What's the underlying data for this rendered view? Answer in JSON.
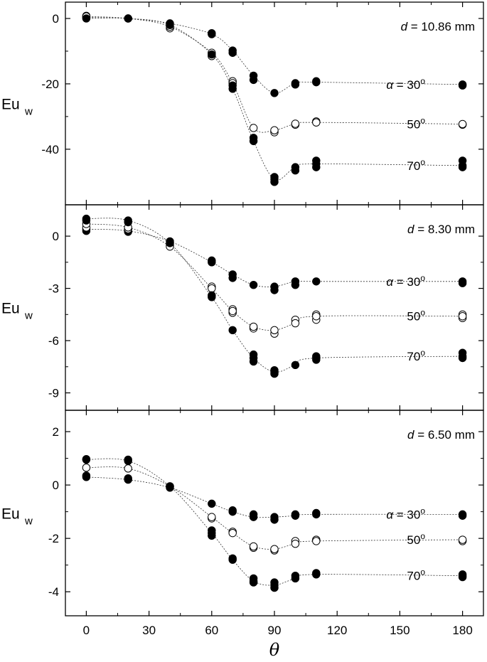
{
  "chart_data": [
    {
      "type": "scatter",
      "panel_label": "d = 10.86 mm",
      "ylabel": "Eu",
      "ylabel_sub": "w",
      "ylim": [
        -57,
        5
      ],
      "yticks": [
        0,
        -20,
        -40
      ],
      "ytick_labels": [
        "0",
        "-20",
        "-40"
      ],
      "xlim": [
        -10,
        190
      ],
      "xticks": [
        0,
        30,
        60,
        90,
        120,
        150,
        180
      ],
      "series": [
        {
          "label": "α = 30°",
          "fill": "filled",
          "x": [
            0,
            20,
            40,
            60,
            70,
            80,
            90,
            100,
            110,
            180
          ],
          "y": [
            0.3,
            0,
            -1.5,
            -4.8,
            -9.8,
            -17.5,
            -22.8,
            -19.8,
            -19.5,
            -20.2
          ],
          "extra": [
            [
              0,
              0.8
            ],
            [
              60,
              -4.5
            ],
            [
              70,
              -10.5
            ],
            [
              80,
              -18.8
            ],
            [
              100,
              -20.2
            ],
            [
              110,
              -19.2
            ],
            [
              180,
              -20.5
            ]
          ]
        },
        {
          "label": "50°",
          "fill": "open",
          "x": [
            0,
            20,
            40,
            60,
            70,
            80,
            90,
            100,
            110,
            180
          ],
          "y": [
            0.6,
            0,
            -2.5,
            -10.5,
            -19.8,
            -33.5,
            -34.2,
            -32.2,
            -31.8,
            -32.3
          ],
          "extra": [
            [
              40,
              -3
            ],
            [
              60,
              -11.5
            ],
            [
              70,
              -19.2
            ],
            [
              90,
              -34.8
            ],
            [
              100,
              -32.5
            ],
            [
              110,
              -31.5
            ],
            [
              180,
              -32.5
            ]
          ]
        },
        {
          "label": "70°",
          "fill": "filled",
          "x": [
            0,
            20,
            40,
            60,
            70,
            80,
            90,
            100,
            110,
            180
          ],
          "y": [
            0,
            0,
            -2,
            -11,
            -21.5,
            -37.5,
            -49.2,
            -45.5,
            -44.5,
            -45
          ],
          "extra": [
            [
              70,
              -20.5
            ],
            [
              80,
              -36.5
            ],
            [
              90,
              -48.5
            ],
            [
              90,
              -50
            ],
            [
              100,
              -46.5
            ],
            [
              110,
              -43.5
            ],
            [
              110,
              -45.5
            ],
            [
              180,
              -43.5
            ],
            [
              180,
              -45.5
            ]
          ]
        }
      ]
    },
    {
      "type": "scatter",
      "panel_label": "d = 8.30 mm",
      "ylabel": "Eu",
      "ylabel_sub": "w",
      "ylim": [
        -10,
        1.8
      ],
      "yticks": [
        0,
        -3,
        -6,
        -9
      ],
      "ytick_labels": [
        "0",
        "-3",
        "-6",
        "-9"
      ],
      "xlim": [
        -10,
        190
      ],
      "xticks": [
        0,
        30,
        60,
        90,
        120,
        150,
        180
      ],
      "series": [
        {
          "label": "α = 30°",
          "fill": "filled",
          "x": [
            0,
            20,
            40,
            60,
            70,
            80,
            90,
            100,
            110,
            180
          ],
          "y": [
            0.4,
            0.3,
            -0.3,
            -1.5,
            -2.2,
            -2.8,
            -2.9,
            -2.6,
            -2.6,
            -2.6
          ],
          "extra": [
            [
              0,
              0.3
            ],
            [
              20,
              0.25
            ],
            [
              40,
              -0.5
            ],
            [
              60,
              -1.4
            ],
            [
              70,
              -2.4
            ],
            [
              90,
              -3.1
            ],
            [
              100,
              -2.8
            ],
            [
              180,
              -2.7
            ]
          ]
        },
        {
          "label": "50°",
          "fill": "open",
          "x": [
            0,
            20,
            40,
            60,
            70,
            80,
            90,
            100,
            110,
            180
          ],
          "y": [
            0.7,
            0.5,
            -0.6,
            -3.0,
            -4.3,
            -5.2,
            -5.4,
            -5.0,
            -4.6,
            -4.6
          ],
          "extra": [
            [
              0,
              0.5
            ],
            [
              20,
              0.4
            ],
            [
              60,
              -2.9
            ],
            [
              70,
              -4.2
            ],
            [
              70,
              -4.4
            ],
            [
              80,
              -5.3
            ],
            [
              90,
              -5.6
            ],
            [
              100,
              -4.8
            ],
            [
              110,
              -4.5
            ],
            [
              110,
              -4.8
            ],
            [
              180,
              -4.5
            ],
            [
              180,
              -4.7
            ]
          ]
        },
        {
          "label": "70°",
          "fill": "filled",
          "x": [
            0,
            20,
            40,
            60,
            70,
            80,
            90,
            100,
            110,
            180
          ],
          "y": [
            1.0,
            0.9,
            -0.4,
            -3.5,
            -5.4,
            -7.0,
            -7.8,
            -7.4,
            -7.0,
            -6.9
          ],
          "extra": [
            [
              0,
              0.9
            ],
            [
              20,
              0.8
            ],
            [
              60,
              -3.4
            ],
            [
              80,
              -6.8
            ],
            [
              80,
              -7.2
            ],
            [
              90,
              -7.7
            ],
            [
              90,
              -7.9
            ],
            [
              110,
              -6.9
            ],
            [
              110,
              -7.1
            ],
            [
              180,
              -6.7
            ],
            [
              180,
              -7.0
            ]
          ]
        }
      ]
    },
    {
      "type": "scatter",
      "panel_label": "d = 6.50 mm",
      "ylabel": "Eu",
      "ylabel_sub": "w",
      "ylim": [
        -4.9,
        2.8
      ],
      "yticks": [
        2,
        0,
        -2,
        -4
      ],
      "ytick_labels": [
        "2",
        "0",
        "-2",
        "-4"
      ],
      "xlim": [
        -10,
        190
      ],
      "xticks": [
        0,
        30,
        60,
        90,
        120,
        150,
        180
      ],
      "xtick_labels": [
        "0",
        "30",
        "60",
        "90",
        "120",
        "150",
        "180"
      ],
      "xlabel": "θ",
      "series": [
        {
          "label": "α = 30°",
          "fill": "filled",
          "x": [
            0,
            20,
            40,
            60,
            70,
            80,
            90,
            100,
            110,
            180
          ],
          "y": [
            0.3,
            0.2,
            -0.1,
            -0.7,
            -1.0,
            -1.2,
            -1.2,
            -1.15,
            -1.1,
            -1.1
          ],
          "extra": [
            [
              0,
              0.35
            ],
            [
              20,
              0.25
            ],
            [
              70,
              -0.95
            ],
            [
              80,
              -1.1
            ],
            [
              90,
              -1.3
            ],
            [
              100,
              -1.1
            ],
            [
              110,
              -1.05
            ],
            [
              180,
              -1.15
            ]
          ]
        },
        {
          "label": "50°",
          "fill": "open",
          "x": [
            0,
            20,
            40,
            60,
            70,
            80,
            90,
            100,
            110,
            180
          ],
          "y": [
            0.65,
            0.62,
            -0.05,
            -1.2,
            -1.8,
            -2.3,
            -2.4,
            -2.2,
            -2.1,
            -2.05
          ],
          "extra": [
            [
              60,
              -1.25
            ],
            [
              70,
              -1.75
            ],
            [
              80,
              -2.35
            ],
            [
              90,
              -2.45
            ],
            [
              100,
              -2.1
            ],
            [
              110,
              -2.05
            ],
            [
              180,
              -2.1
            ]
          ]
        },
        {
          "label": "70°",
          "fill": "filled",
          "x": [
            0,
            20,
            40,
            60,
            70,
            80,
            90,
            100,
            110,
            180
          ],
          "y": [
            0.95,
            0.9,
            -0.05,
            -1.8,
            -2.8,
            -3.6,
            -3.75,
            -3.5,
            -3.35,
            -3.4
          ],
          "extra": [
            [
              0,
              0.97
            ],
            [
              20,
              0.95
            ],
            [
              60,
              -1.9
            ],
            [
              60,
              -1.7
            ],
            [
              70,
              -2.75
            ],
            [
              80,
              -3.5
            ],
            [
              80,
              -3.65
            ],
            [
              90,
              -3.65
            ],
            [
              90,
              -3.85
            ],
            [
              100,
              -3.4
            ],
            [
              110,
              -3.3
            ],
            [
              180,
              -3.35
            ],
            [
              180,
              -3.45
            ]
          ]
        }
      ]
    }
  ]
}
